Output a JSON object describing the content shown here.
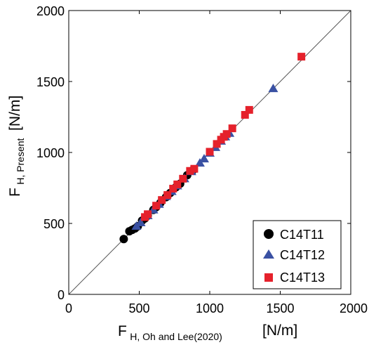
{
  "chart_data": {
    "type": "scatter",
    "xlabel": {
      "main": "F",
      "sub": "H, Oh and Lee(2020)",
      "unit": "[N/m]"
    },
    "ylabel": {
      "main": "F",
      "sub": "H, Present",
      "unit": "[N/m]"
    },
    "xlim": [
      0,
      2000
    ],
    "ylim": [
      0,
      2000
    ],
    "xticks": [
      "0",
      "500",
      "1000",
      "1500",
      "2000"
    ],
    "yticks": [
      "0",
      "500",
      "1000",
      "1500",
      "2000"
    ],
    "grid": false,
    "reference_line": {
      "x": [
        0,
        2000
      ],
      "y": [
        0,
        2000
      ]
    },
    "legend_position": "bottom-right",
    "series": [
      {
        "name": "C14T11",
        "marker": "circle",
        "color": "#000000",
        "points": [
          [
            390,
            390
          ],
          [
            430,
            445
          ],
          [
            450,
            455
          ],
          [
            470,
            465
          ],
          [
            490,
            480
          ],
          [
            520,
            520
          ],
          [
            540,
            535
          ],
          [
            560,
            555
          ],
          [
            600,
            595
          ],
          [
            620,
            615
          ],
          [
            650,
            645
          ],
          [
            690,
            685
          ],
          [
            720,
            715
          ],
          [
            760,
            755
          ],
          [
            790,
            780
          ],
          [
            840,
            840
          ],
          [
            880,
            875
          ]
        ]
      },
      {
        "name": "C14T12",
        "marker": "triangle",
        "color": "#3a51a3",
        "points": [
          [
            480,
            480
          ],
          [
            510,
            505
          ],
          [
            560,
            555
          ],
          [
            600,
            595
          ],
          [
            640,
            635
          ],
          [
            690,
            690
          ],
          [
            730,
            725
          ],
          [
            770,
            765
          ],
          [
            820,
            815
          ],
          [
            870,
            865
          ],
          [
            930,
            925
          ],
          [
            960,
            955
          ],
          [
            1000,
            995
          ],
          [
            1040,
            1035
          ],
          [
            1080,
            1080
          ],
          [
            1110,
            1110
          ],
          [
            1140,
            1135
          ],
          [
            1450,
            1450
          ]
        ]
      },
      {
        "name": "C14T13",
        "marker": "square",
        "color": "#e5212b",
        "points": [
          [
            540,
            545
          ],
          [
            560,
            565
          ],
          [
            620,
            625
          ],
          [
            660,
            665
          ],
          [
            700,
            700
          ],
          [
            740,
            745
          ],
          [
            770,
            775
          ],
          [
            810,
            815
          ],
          [
            860,
            870
          ],
          [
            890,
            885
          ],
          [
            1000,
            1005
          ],
          [
            1050,
            1060
          ],
          [
            1080,
            1090
          ],
          [
            1100,
            1110
          ],
          [
            1120,
            1130
          ],
          [
            1160,
            1170
          ],
          [
            1250,
            1265
          ],
          [
            1280,
            1300
          ],
          [
            1650,
            1675
          ]
        ]
      }
    ]
  }
}
